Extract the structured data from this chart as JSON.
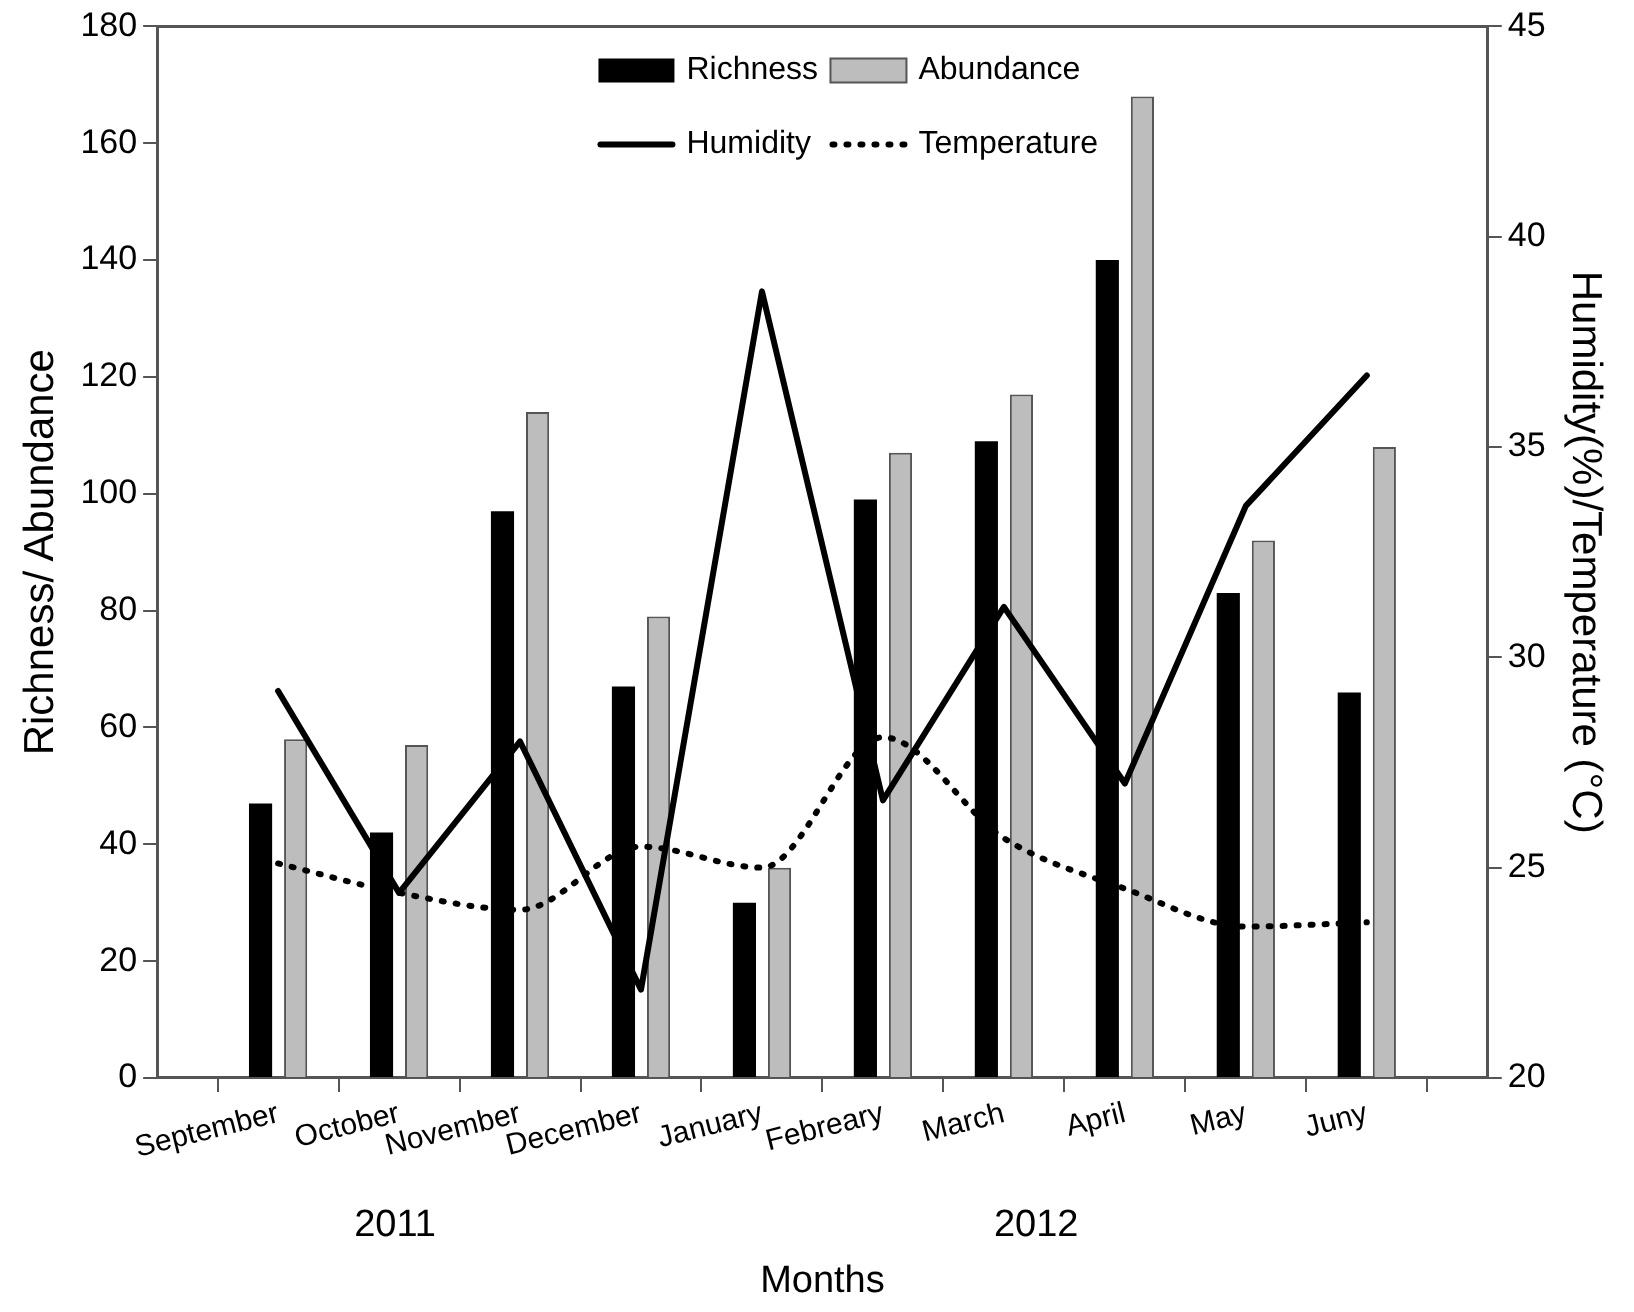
{
  "chart_data": {
    "type": "bar",
    "xlabel": "Months",
    "ylabel": "Richness/ Abundance",
    "y2label": "Humidity(%)/Temperature (°C)",
    "categories": [
      "September",
      "October",
      "November",
      "December",
      "January",
      "Febreary",
      "March",
      "April",
      "May",
      "Juny"
    ],
    "series": [
      {
        "name": "Richness",
        "color": "#000000",
        "values": [
          47,
          42,
          97,
          67,
          30,
          99,
          109,
          140,
          83,
          66
        ]
      },
      {
        "name": "Abundance",
        "color": "#bdbdbd",
        "values": [
          58,
          57,
          114,
          79,
          36,
          107,
          117,
          168,
          92,
          108
        ]
      },
      {
        "name": "Humidity",
        "type": "line",
        "axis": "y2",
        "color": "#000000",
        "line_style": "solid",
        "values": [
          29.2,
          24.4,
          28.0,
          22.1,
          38.7,
          26.6,
          31.2,
          27.0,
          33.6,
          36.7
        ]
      },
      {
        "name": "Temperature",
        "type": "line",
        "axis": "y2",
        "color": "#000000",
        "line_style": "dotted",
        "values": [
          25.1,
          24.4,
          24.0,
          25.5,
          25.0,
          28.1,
          25.7,
          24.5,
          23.6,
          23.7
        ]
      }
    ],
    "ylim": [
      0,
      180
    ],
    "yticks": [
      0,
      20,
      40,
      60,
      80,
      100,
      120,
      140,
      160,
      180
    ],
    "y2lim": [
      20,
      45
    ],
    "y2ticks": [
      20,
      25,
      30,
      35,
      40,
      45
    ],
    "annotations": [
      "2011",
      "2012"
    ],
    "legend": "top",
    "grid": false,
    "marker": "none"
  }
}
